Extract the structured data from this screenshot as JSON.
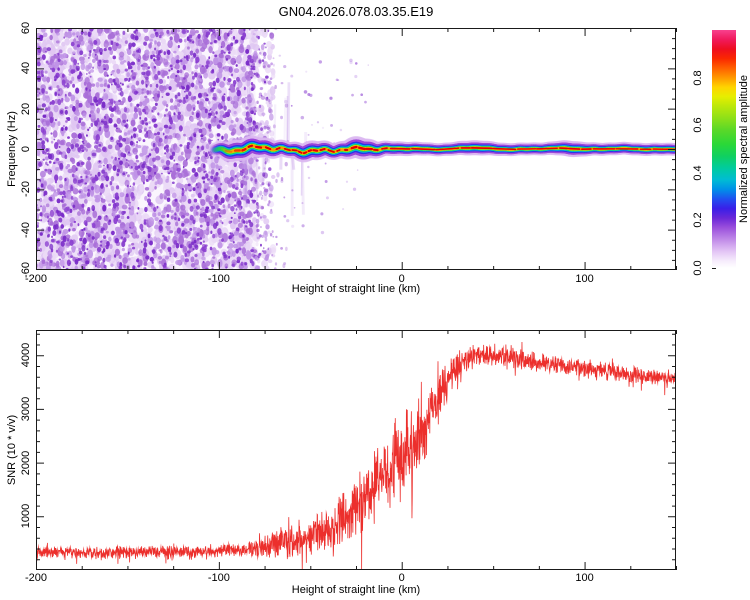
{
  "title": "GN04.2026.078.03.35.E19",
  "colors": {
    "frame": "#1a1a1a",
    "background": "#ffffff",
    "trace": "#ec2f2c",
    "noise_palette_light": [
      "#ead9f6",
      "#dfc6f2"
    ],
    "noise_palette_mid": [
      "#bf93e6",
      "#a96fd8"
    ],
    "noise_palette_dark": [
      "#8a3ed0",
      "#7a2cc8"
    ],
    "noise_background": "#faf5fd",
    "band_layers": [
      {
        "name": "halo-lavender",
        "color": "#dcb8f2",
        "width": 15.0,
        "alpha": 0.5
      },
      {
        "name": "violet",
        "color": "#9a44d8",
        "width": 10.5,
        "alpha": 0.88
      },
      {
        "name": "blue",
        "color": "#2a35e8",
        "width": 7.2,
        "alpha": 1.0
      },
      {
        "name": "cyan",
        "color": "#00bcdc",
        "width": 5.2,
        "alpha": 1.0
      },
      {
        "name": "green",
        "color": "#28d244",
        "width": 3.8,
        "alpha": 1.0
      },
      {
        "name": "yellow",
        "color": "#eeee00",
        "width": 2.6,
        "alpha": 1.0
      },
      {
        "name": "orange",
        "color": "#ff9400",
        "width": 2.0,
        "alpha": 1.0
      }
    ],
    "band_core_red": "#e40000",
    "colormap_stops": [
      [
        0,
        "#ffffff"
      ],
      [
        3,
        "#f6ecfc"
      ],
      [
        7,
        "#e3c4f5"
      ],
      [
        12,
        "#c08ae8"
      ],
      [
        17,
        "#9a4fdc"
      ],
      [
        21,
        "#6a28d8"
      ],
      [
        25,
        "#3a1fe8"
      ],
      [
        29,
        "#2050f0"
      ],
      [
        33,
        "#0090e8"
      ],
      [
        37,
        "#00bcd4"
      ],
      [
        42,
        "#00cc9e"
      ],
      [
        47,
        "#10d060"
      ],
      [
        52,
        "#2ad838"
      ],
      [
        58,
        "#5ad828"
      ],
      [
        63,
        "#8ee018"
      ],
      [
        68,
        "#bce80a"
      ],
      [
        72,
        "#e6ee00"
      ],
      [
        76,
        "#ffd400"
      ],
      [
        80,
        "#ff9800"
      ],
      [
        84,
        "#ff6000"
      ],
      [
        88,
        "#fa2800"
      ],
      [
        92,
        "#ee0e20"
      ],
      [
        96,
        "#f01a5c"
      ],
      [
        100,
        "#f8418e"
      ]
    ]
  },
  "chart_data": [
    {
      "type": "heatmap",
      "panel": "spectrogram",
      "xlabel": "Height of straight line (km)",
      "ylabel": "Frequency (Hz)",
      "xlim": [
        -200,
        150
      ],
      "ylim": [
        -60,
        60
      ],
      "xticks": [
        -200,
        -100,
        0,
        100
      ],
      "xtick_labels": [
        "-200",
        "-100",
        "0",
        "100"
      ],
      "yticks": [
        60,
        40,
        20,
        0,
        -20,
        -40,
        -60
      ],
      "ytick_labels": [
        "60",
        "40",
        "20",
        "0",
        "-20",
        "-40",
        "-60"
      ],
      "x_minor_step": 25,
      "y_minor_step": 5,
      "grid": false,
      "colorbar": {
        "label": "Normalized spectral amplitude",
        "ticks": [
          0.0,
          0.2,
          0.4,
          0.6,
          0.8
        ],
        "tick_labels": [
          "0.0",
          "0.2",
          "0.4",
          "0.6",
          "0.8"
        ],
        "range": [
          0,
          1
        ]
      },
      "noise_region_km": [
        -200,
        -70
      ],
      "signal_ridge": {
        "center_freq_hz": 0,
        "visible_from_km": -104,
        "to_km": 150,
        "description": "narrow high-amplitude spectral ridge at ~0 Hz; red core with yellow/green/cyan/blue/violet fringes; wobbles slightly between -100 and -15 km then flat"
      }
    },
    {
      "type": "line",
      "panel": "snr",
      "xlabel": "Height of straight line (km)",
      "ylabel": "SNR (10 * v/v)",
      "xlim": [
        -200,
        150
      ],
      "ylim": [
        0,
        4470
      ],
      "xticks": [
        -200,
        -100,
        0,
        100
      ],
      "xtick_labels": [
        "-200",
        "-100",
        "0",
        "100"
      ],
      "yticks": [
        4000,
        3000,
        2000,
        1000
      ],
      "ytick_labels": [
        "4000",
        "3000",
        "2000",
        "1000"
      ],
      "x_minor_step": 25,
      "y_minor_step": 200,
      "grid": false,
      "series": [
        {
          "name": "SNR",
          "color": "#ec2f2c",
          "profile_x_mean_noise": [
            [
              -200,
              330,
              130
            ],
            [
              -170,
              330,
              130
            ],
            [
              -140,
              335,
              130
            ],
            [
              -115,
              340,
              135
            ],
            [
              -100,
              350,
              140
            ],
            [
              -90,
              365,
              150
            ],
            [
              -82,
              395,
              180
            ],
            [
              -75,
              450,
              260
            ],
            [
              -68,
              500,
              330
            ],
            [
              -60,
              545,
              390
            ],
            [
              -52,
              600,
              430
            ],
            [
              -46,
              660,
              480
            ],
            [
              -40,
              760,
              540
            ],
            [
              -34,
              900,
              600
            ],
            [
              -28,
              1030,
              650
            ],
            [
              -22,
              1250,
              720
            ],
            [
              -16,
              1530,
              800
            ],
            [
              -10,
              1800,
              860
            ],
            [
              -4,
              2030,
              890
            ],
            [
              2,
              2230,
              900
            ],
            [
              8,
              2450,
              840
            ],
            [
              14,
              2780,
              730
            ],
            [
              20,
              3180,
              580
            ],
            [
              26,
              3620,
              430
            ],
            [
              32,
              3870,
              330
            ],
            [
              38,
              3980,
              280
            ],
            [
              46,
              4030,
              260
            ],
            [
              55,
              4000,
              250
            ],
            [
              65,
              3940,
              235
            ],
            [
              75,
              3880,
              225
            ],
            [
              85,
              3830,
              215
            ],
            [
              95,
              3790,
              205
            ],
            [
              105,
              3740,
              200
            ],
            [
              115,
              3690,
              205
            ],
            [
              125,
              3650,
              205
            ],
            [
              135,
              3600,
              200
            ],
            [
              143,
              3560,
              195
            ],
            [
              150,
              3560,
              190
            ]
          ]
        }
      ]
    }
  ]
}
